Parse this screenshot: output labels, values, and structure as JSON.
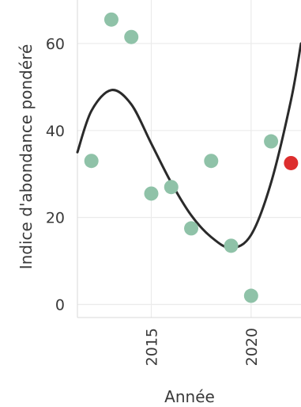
{
  "chart_data": {
    "type": "scatter",
    "xlabel": "Année",
    "ylabel": "Indice d'abondance pondéré",
    "xlim": [
      2011.3,
      2022.5
    ],
    "ylim": [
      -3,
      70
    ],
    "x_ticks": [
      2015,
      2020
    ],
    "y_ticks": [
      0,
      20,
      40,
      60
    ],
    "grid": true,
    "series": [
      {
        "points": [
          {
            "x": 2012,
            "y": 33
          },
          {
            "x": 2013,
            "y": 65.5
          },
          {
            "x": 2014,
            "y": 61.5
          },
          {
            "x": 2015,
            "y": 25.5
          },
          {
            "x": 2016,
            "y": 27
          },
          {
            "x": 2017,
            "y": 17.5
          },
          {
            "x": 2018,
            "y": 33
          },
          {
            "x": 2019,
            "y": 13.5
          },
          {
            "x": 2020,
            "y": 2
          },
          {
            "x": 2021,
            "y": 37.5
          }
        ],
        "color": "#8fc2a8"
      },
      {
        "points": [
          {
            "x": 2022,
            "y": 32.5
          }
        ],
        "color": "#dd2e2e"
      }
    ],
    "trend": {
      "color": "#2a2a2a",
      "points": [
        {
          "x": 2011.3,
          "y": 35
        },
        {
          "x": 2012,
          "y": 44.5
        },
        {
          "x": 2013,
          "y": 49.3
        },
        {
          "x": 2014,
          "y": 46
        },
        {
          "x": 2015,
          "y": 37
        },
        {
          "x": 2016,
          "y": 28
        },
        {
          "x": 2017,
          "y": 20.5
        },
        {
          "x": 2018,
          "y": 15.5
        },
        {
          "x": 2019,
          "y": 13
        },
        {
          "x": 2020,
          "y": 16
        },
        {
          "x": 2021,
          "y": 28
        },
        {
          "x": 2022,
          "y": 47
        },
        {
          "x": 2022.5,
          "y": 60
        }
      ]
    }
  }
}
